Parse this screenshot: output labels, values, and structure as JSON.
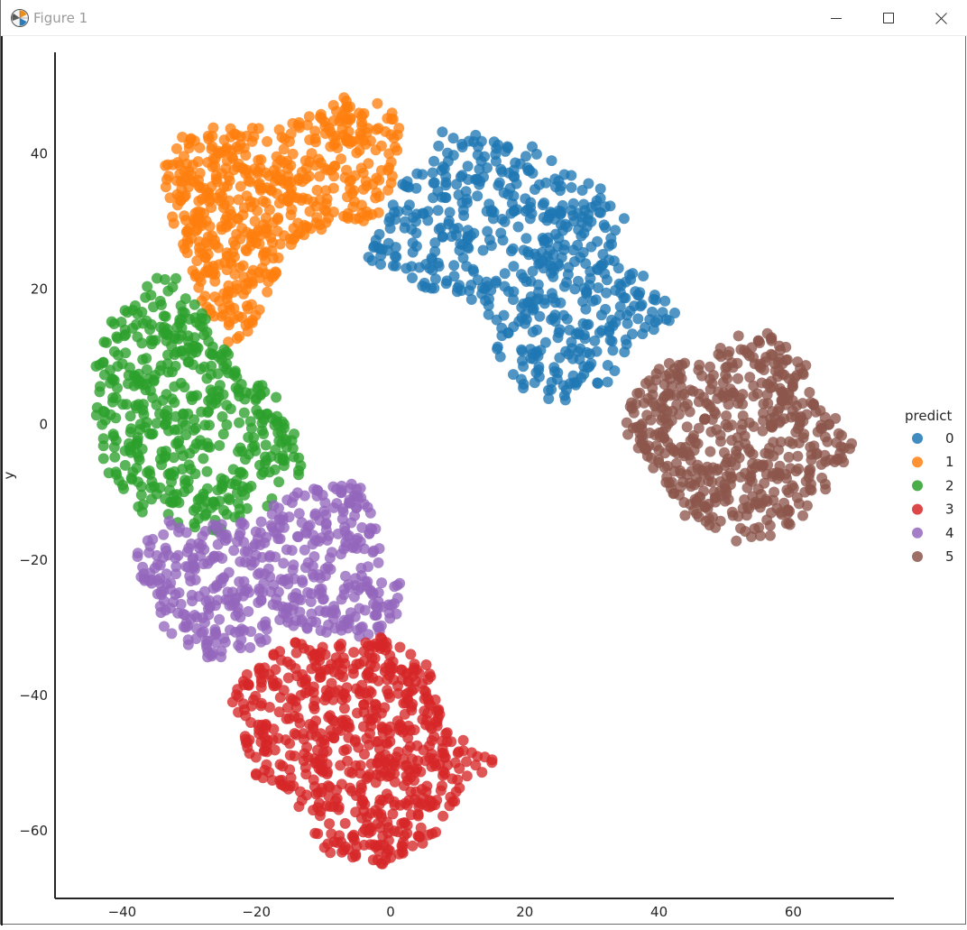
{
  "window": {
    "title": "Figure 1",
    "icon": "matplotlib-icon"
  },
  "controls": {
    "minimize_icon": "minimize-icon",
    "maximize_icon": "maximize-icon",
    "close_icon": "close-icon"
  },
  "chart_data": {
    "type": "scatter",
    "title": "",
    "xlabel": "",
    "ylabel": "y",
    "xlim": [
      -50,
      75
    ],
    "ylim": [
      -70,
      55
    ],
    "xticks": [
      -40,
      -20,
      0,
      20,
      40,
      60
    ],
    "yticks": [
      -60,
      -40,
      -20,
      0,
      20,
      40
    ],
    "grid": false,
    "legend": {
      "title": "predict",
      "placement": "right"
    },
    "point_counts_approx": {
      "0": 550,
      "1": 550,
      "2": 480,
      "3": 650,
      "4": 480,
      "5": 520
    },
    "series": [
      {
        "name": "0",
        "color": "#1f77b4",
        "approx_extent": {
          "x": [
            -4,
            45
          ],
          "y": [
            3,
            46
          ]
        },
        "shape_outline": [
          [
            -4,
            25
          ],
          [
            0,
            33
          ],
          [
            4,
            39
          ],
          [
            9,
            45
          ],
          [
            15,
            42
          ],
          [
            22,
            41
          ],
          [
            30,
            37
          ],
          [
            35,
            31
          ],
          [
            36,
            24
          ],
          [
            44,
            15
          ],
          [
            36,
            13
          ],
          [
            32,
            5
          ],
          [
            26,
            3
          ],
          [
            20,
            5
          ],
          [
            16,
            10
          ],
          [
            14,
            17
          ],
          [
            10,
            19
          ],
          [
            5,
            20
          ],
          [
            0,
            22
          ]
        ]
      },
      {
        "name": "1",
        "color": "#ff7f0e",
        "approx_extent": {
          "x": [
            -35,
            2
          ],
          "y": [
            11,
            49
          ]
        },
        "shape_outline": [
          [
            -34,
            38
          ],
          [
            -31,
            43
          ],
          [
            -27,
            44
          ],
          [
            -20,
            44
          ],
          [
            -14,
            45
          ],
          [
            -10,
            47
          ],
          [
            -6,
            49
          ],
          [
            -2,
            48
          ],
          [
            2,
            45
          ],
          [
            1,
            37
          ],
          [
            -2,
            30
          ],
          [
            -8,
            29
          ],
          [
            -13,
            28
          ],
          [
            -16,
            23
          ],
          [
            -19,
            18
          ],
          [
            -21,
            14
          ],
          [
            -23,
            11
          ],
          [
            -26,
            14
          ],
          [
            -29,
            20
          ],
          [
            -31,
            25
          ],
          [
            -33,
            31
          ]
        ]
      },
      {
        "name": "2",
        "color": "#2ca02c",
        "approx_extent": {
          "x": [
            -44,
            -13
          ],
          "y": [
            -16,
            23
          ]
        },
        "shape_outline": [
          [
            -44,
            10
          ],
          [
            -41,
            17
          ],
          [
            -37,
            20
          ],
          [
            -33,
            23
          ],
          [
            -29,
            19
          ],
          [
            -26,
            13
          ],
          [
            -21,
            8
          ],
          [
            -17,
            4
          ],
          [
            -14,
            -1
          ],
          [
            -13,
            -7
          ],
          [
            -16,
            -10
          ],
          [
            -20,
            -14
          ],
          [
            -25,
            -16
          ],
          [
            -31,
            -15
          ],
          [
            -37,
            -13
          ],
          [
            -41,
            -9
          ],
          [
            -45,
            -2
          ],
          [
            -45,
            4
          ]
        ]
      },
      {
        "name": "4",
        "color": "#9467bd",
        "approx_extent": {
          "x": [
            -38,
            2
          ],
          "y": [
            -35,
            -8
          ]
        },
        "shape_outline": [
          [
            -38,
            -18
          ],
          [
            -33,
            -14
          ],
          [
            -28,
            -15
          ],
          [
            -21,
            -14
          ],
          [
            -14,
            -10
          ],
          [
            -8,
            -8
          ],
          [
            -4,
            -9
          ],
          [
            -2,
            -16
          ],
          [
            0,
            -24
          ],
          [
            2,
            -23
          ],
          [
            1,
            -28
          ],
          [
            -3,
            -32
          ],
          [
            -8,
            -31
          ],
          [
            -13,
            -30
          ],
          [
            -18,
            -32
          ],
          [
            -22,
            -34
          ],
          [
            -26,
            -35
          ],
          [
            -30,
            -33
          ],
          [
            -35,
            -29
          ],
          [
            -37,
            -24
          ]
        ]
      },
      {
        "name": "3",
        "color": "#d62728",
        "approx_extent": {
          "x": [
            -24,
            16
          ],
          "y": [
            -65,
            -31
          ]
        },
        "shape_outline": [
          [
            -24,
            -40
          ],
          [
            -20,
            -35
          ],
          [
            -15,
            -32
          ],
          [
            -9,
            -33
          ],
          [
            -4,
            -31
          ],
          [
            2,
            -32
          ],
          [
            6,
            -36
          ],
          [
            7,
            -41
          ],
          [
            9,
            -46
          ],
          [
            12,
            -47
          ],
          [
            16,
            -49
          ],
          [
            13,
            -52
          ],
          [
            10,
            -56
          ],
          [
            7,
            -60
          ],
          [
            3,
            -64
          ],
          [
            -1,
            -65
          ],
          [
            -6,
            -64
          ],
          [
            -10,
            -63
          ],
          [
            -13,
            -58
          ],
          [
            -15,
            -54
          ],
          [
            -20,
            -52
          ],
          [
            -22,
            -47
          ]
        ]
      },
      {
        "name": "5",
        "color": "#8c564b",
        "approx_extent": {
          "x": [
            34,
            69
          ],
          "y": [
            -18,
            15
          ]
        },
        "shape_outline": [
          [
            34,
            0
          ],
          [
            38,
            7
          ],
          [
            44,
            11
          ],
          [
            50,
            12
          ],
          [
            55,
            15
          ],
          [
            58,
            13
          ],
          [
            62,
            9
          ],
          [
            64,
            4
          ],
          [
            67,
            0
          ],
          [
            69,
            -3
          ],
          [
            67,
            -7
          ],
          [
            64,
            -11
          ],
          [
            61,
            -14
          ],
          [
            56,
            -17
          ],
          [
            50,
            -18
          ],
          [
            45,
            -15
          ],
          [
            41,
            -10
          ],
          [
            38,
            -5
          ]
        ]
      }
    ]
  }
}
